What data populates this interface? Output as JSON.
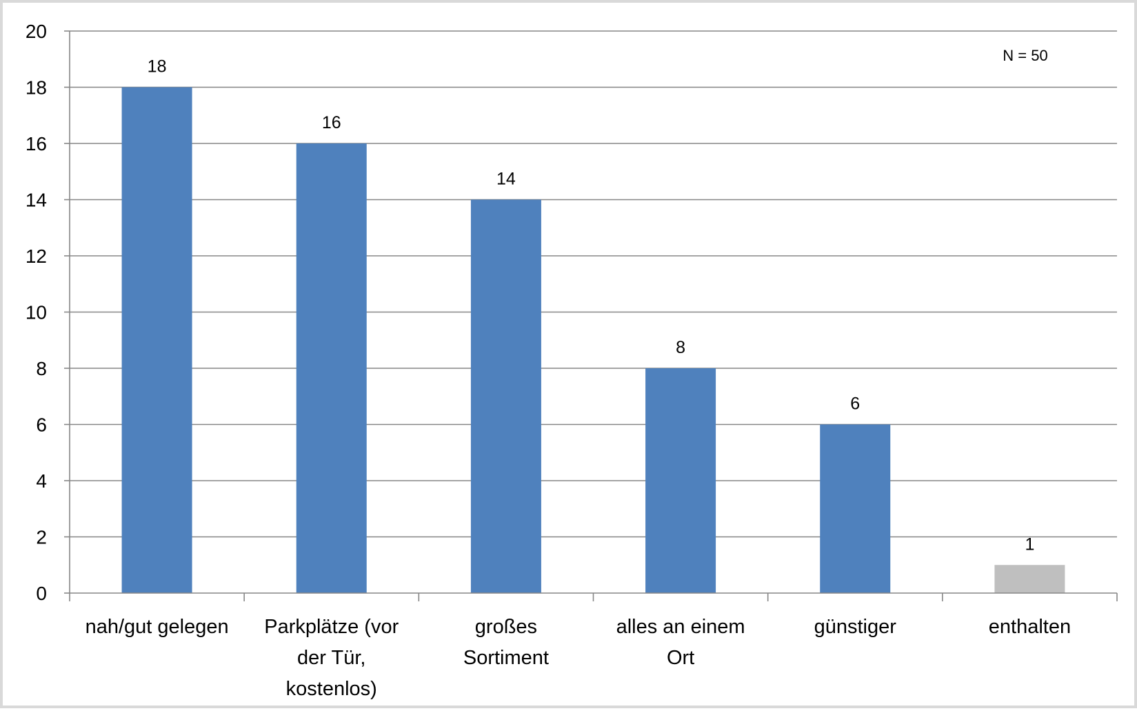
{
  "chart_data": {
    "type": "bar",
    "categories": [
      [
        "nah/gut gelegen"
      ],
      [
        "Parkplätze (vor",
        "der Tür,",
        "kostenlos)"
      ],
      [
        "großes",
        "Sortiment"
      ],
      [
        "alles an einem",
        "Ort"
      ],
      [
        "günstiger"
      ],
      [
        "enthalten"
      ]
    ],
    "values": [
      18,
      16,
      14,
      8,
      6,
      1
    ],
    "value_labels": [
      "18",
      "16",
      "14",
      "8",
      "6",
      "1"
    ],
    "bar_colors": [
      "#4f81bd",
      "#4f81bd",
      "#4f81bd",
      "#4f81bd",
      "#4f81bd",
      "#bfbfbf"
    ],
    "ylim": [
      0,
      20
    ],
    "yticks": [
      0,
      2,
      4,
      6,
      8,
      10,
      12,
      14,
      16,
      18,
      20
    ],
    "ytick_labels": [
      "0",
      "2",
      "4",
      "6",
      "8",
      "10",
      "12",
      "14",
      "16",
      "18",
      "20"
    ],
    "grid": true,
    "gridline_color": "#868686",
    "annotation": "N = 50",
    "annotation_position": "top-right"
  }
}
